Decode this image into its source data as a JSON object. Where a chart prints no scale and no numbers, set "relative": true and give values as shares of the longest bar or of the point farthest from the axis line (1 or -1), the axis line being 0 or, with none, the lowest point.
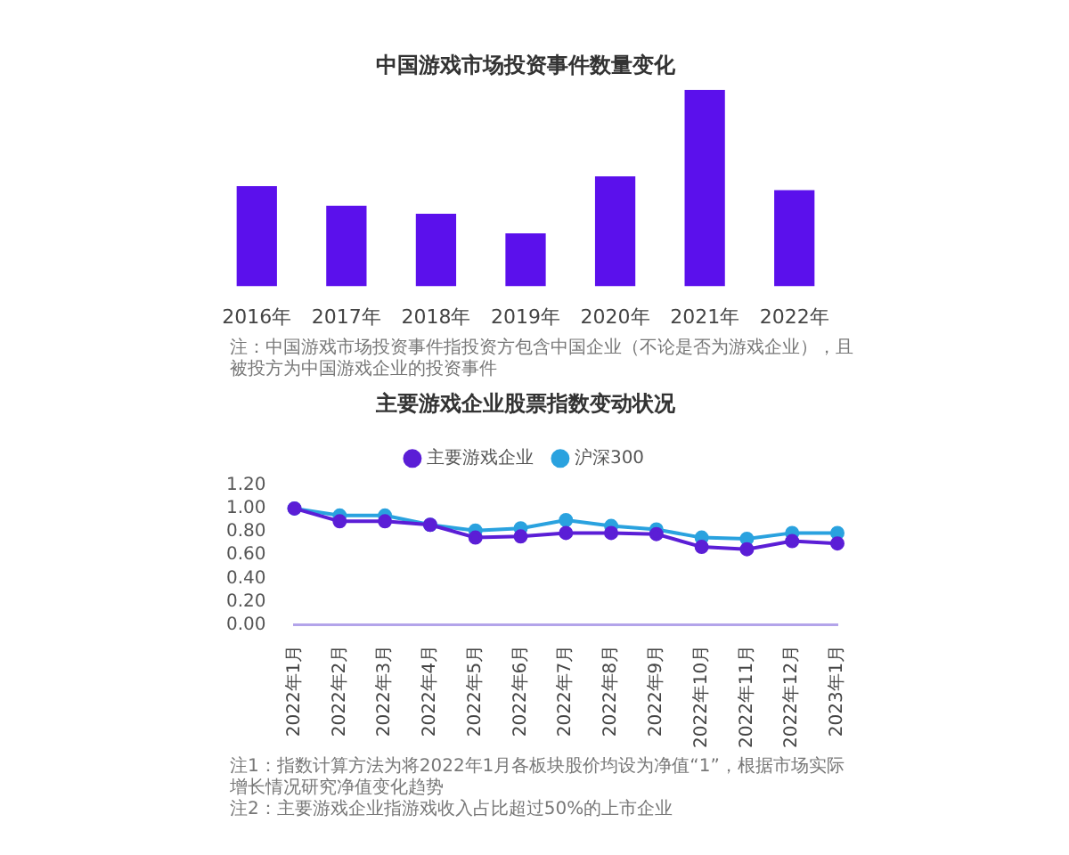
{
  "chart_data": [
    {
      "type": "bar",
      "title": "中国游戏市场投资事件数量变化",
      "categories": [
        "2016年",
        "2017年",
        "2018年",
        "2019年",
        "2020年",
        "2021年",
        "2022年"
      ],
      "values": [
        0.51,
        0.41,
        0.37,
        0.27,
        0.56,
        1,
        0.49
      ],
      "color": "#5b10ec",
      "relative": true,
      "annotations": [
        "注：中国游戏市场投资事件指投资方包含中国企业（不论是否为游戏企业），且被投方为中国游戏企业的投资事件"
      ]
    },
    {
      "type": "line",
      "title": "主要游戏企业股票指数变动状况",
      "categories": [
        "2022年1月",
        "2022年2月",
        "2022年3月",
        "2022年4月",
        "2022年5月",
        "2022年6月",
        "2022年7月",
        "2022年8月",
        "2022年9月",
        "2022年10月",
        "2022年11月",
        "2022年12月",
        "2023年1月"
      ],
      "series": [
        {
          "name": "主要游戏企业",
          "color": "#5b1ed6",
          "values": [
            1.0,
            0.89,
            0.89,
            0.86,
            0.75,
            0.76,
            0.79,
            0.79,
            0.78,
            0.67,
            0.65,
            0.72,
            0.7
          ]
        },
        {
          "name": "沪深300",
          "color": "#2aa2df",
          "values": [
            1.0,
            0.94,
            0.94,
            0.86,
            0.81,
            0.83,
            0.9,
            0.85,
            0.82,
            0.75,
            0.74,
            0.79,
            0.79
          ]
        }
      ],
      "ylim": [
        0,
        1.2
      ],
      "yticks": [
        {
          "value": 0,
          "label": "0.00"
        },
        {
          "value": 0.2,
          "label": "0.20"
        },
        {
          "value": 0.4,
          "label": "0.40"
        },
        {
          "value": 0.6,
          "label": "0.60"
        },
        {
          "value": 0.8,
          "label": "0.80"
        },
        {
          "value": 1,
          "label": "1.00"
        },
        {
          "value": 1.2,
          "label": "1.20"
        }
      ],
      "legend": "top",
      "marker": "circle",
      "annotations": [
        "注1：指数计算方法为将2022年1月各板块股价均设为净值“1”，根据市场实际增长情况研究净值变化趋势",
        "注2：主要游戏企业指游戏收入占比超过50%的上市企业"
      ]
    }
  ]
}
